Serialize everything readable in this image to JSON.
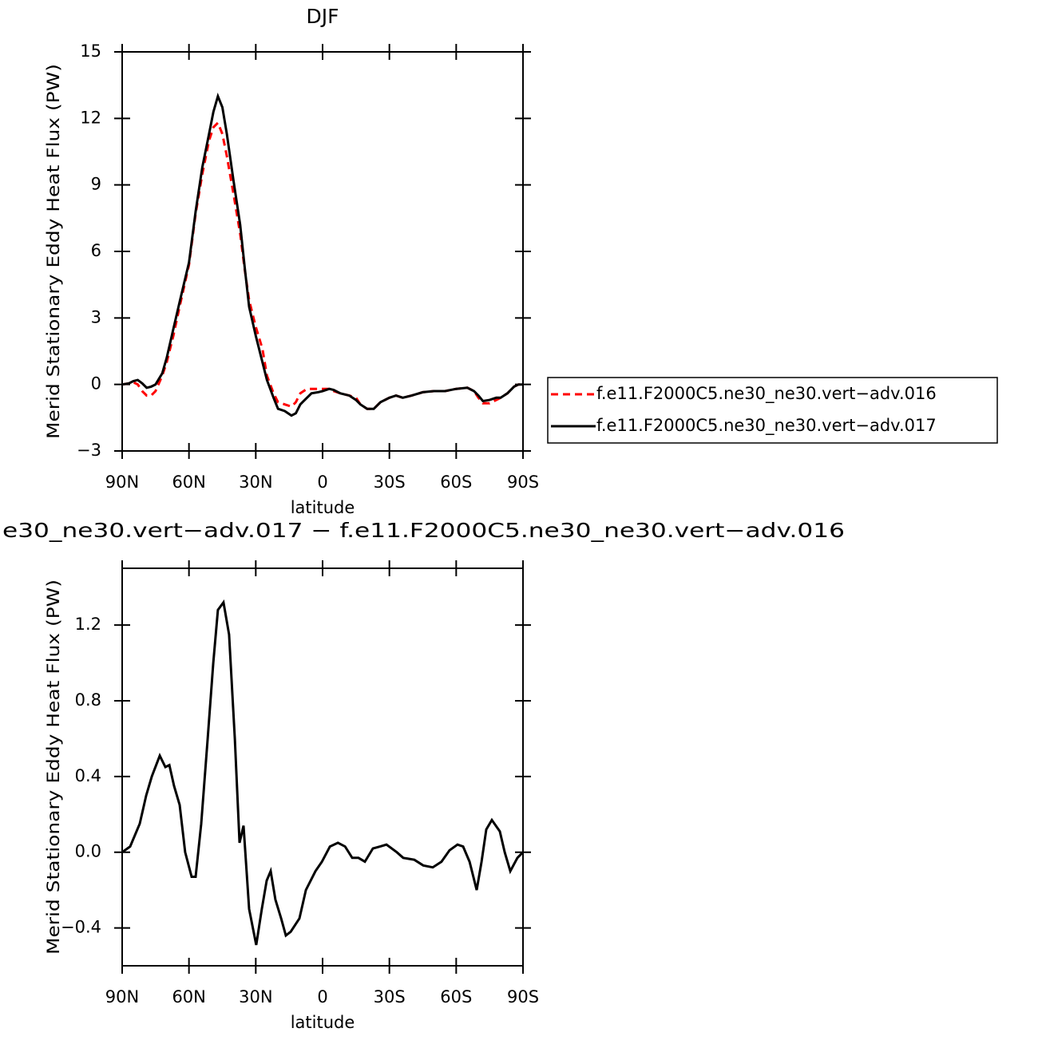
{
  "chart_data": [
    {
      "type": "line",
      "title": "DJF",
      "xlabel": "latitude",
      "ylabel": "Merid Stationary Eddy Heat Flux (PW)",
      "x": [
        90,
        87,
        85,
        83,
        81,
        79,
        77,
        75,
        72,
        70,
        67,
        64,
        60,
        57,
        54,
        51,
        49,
        47,
        45,
        43,
        40,
        37,
        35,
        33,
        30,
        27,
        25,
        22,
        20,
        17,
        14,
        12,
        10,
        7,
        5,
        2,
        0,
        -3,
        -5,
        -8,
        -12,
        -15,
        -17,
        -20,
        -23,
        -26,
        -30,
        -33,
        -36,
        -40,
        -45,
        -50,
        -55,
        -60,
        -65,
        -68,
        -70,
        -72,
        -75,
        -78,
        -80,
        -83,
        -86,
        -88,
        -90
      ],
      "series": [
        {
          "name": "f.e11.F2000C5.ne30_ne30.vert−adv.016",
          "color": "#ff0000",
          "line_style": "dashed",
          "values": [
            0,
            0.05,
            0.1,
            0.0,
            -0.3,
            -0.5,
            -0.5,
            -0.3,
            0.4,
            1.0,
            2.2,
            3.6,
            5.4,
            7.7,
            9.5,
            11.0,
            11.6,
            11.8,
            11.3,
            10.3,
            8.6,
            6.8,
            5.2,
            3.8,
            2.6,
            1.6,
            0.4,
            -0.4,
            -0.8,
            -0.9,
            -1.0,
            -0.8,
            -0.4,
            -0.2,
            -0.2,
            -0.2,
            -0.2,
            -0.2,
            -0.3,
            -0.4,
            -0.5,
            -0.6,
            -0.9,
            -1.1,
            -1.1,
            -0.8,
            -0.6,
            -0.5,
            -0.6,
            -0.5,
            -0.35,
            -0.3,
            -0.3,
            -0.2,
            -0.15,
            -0.3,
            -0.6,
            -0.85,
            -0.85,
            -0.7,
            -0.6,
            -0.4,
            -0.1,
            0,
            0
          ]
        },
        {
          "name": "f.e11.F2000C5.ne30_ne30.vert−adv.017",
          "color": "#000000",
          "line_style": "solid",
          "values": [
            0,
            0.05,
            0.15,
            0.2,
            0.05,
            -0.15,
            -0.1,
            0.0,
            0.5,
            1.2,
            2.5,
            3.8,
            5.5,
            7.8,
            9.8,
            11.3,
            12.3,
            13.0,
            12.5,
            11.3,
            9.2,
            7.2,
            5.3,
            3.5,
            2.2,
            1.0,
            0.2,
            -0.6,
            -1.1,
            -1.2,
            -1.4,
            -1.3,
            -0.9,
            -0.6,
            -0.4,
            -0.35,
            -0.3,
            -0.2,
            -0.25,
            -0.4,
            -0.5,
            -0.7,
            -0.9,
            -1.1,
            -1.1,
            -0.8,
            -0.6,
            -0.5,
            -0.6,
            -0.5,
            -0.35,
            -0.3,
            -0.3,
            -0.2,
            -0.15,
            -0.3,
            -0.5,
            -0.75,
            -0.7,
            -0.6,
            -0.6,
            -0.4,
            -0.1,
            0,
            0
          ]
        }
      ],
      "xlim": [
        90,
        -90
      ],
      "xticks": [
        {
          "value": 90,
          "label": "90N"
        },
        {
          "value": 60,
          "label": "60N"
        },
        {
          "value": 30,
          "label": "30N"
        },
        0,
        {
          "value": -30,
          "label": "30S"
        },
        {
          "value": -60,
          "label": "60S"
        },
        {
          "value": -90,
          "label": "90S"
        }
      ],
      "ylim": [
        -3,
        15
      ],
      "yticks": [
        {
          "value": -3,
          "label": "−3"
        },
        0,
        3,
        6,
        9,
        12,
        15
      ],
      "legend": "outside-right"
    },
    {
      "type": "line",
      "title": "e30_ne30.vert−adv.017 − f.e11.F2000C5.ne30_ne30.vert−adv.016",
      "xlabel": "latitude",
      "ylabel": "Merid Stationary Eddy Heat Flux (PW)",
      "x": [
        90,
        86.4,
        82.1,
        79.2,
        76.7,
        73.1,
        70.6,
        68.8,
        66.7,
        64.2,
        61.7,
        58.8,
        57.0,
        54.5,
        51.6,
        49.1,
        47.0,
        44.5,
        42.0,
        39.4,
        37.3,
        35.5,
        33.0,
        29.8,
        27.3,
        25.1,
        23.3,
        21.2,
        18.6,
        16.5,
        14.3,
        10.4,
        7.5,
        3.2,
        0.3,
        -3.3,
        -6.9,
        -10.1,
        -13.3,
        -16.1,
        -19.0,
        -22.6,
        -25.8,
        -28.7,
        -33.3,
        -36.2,
        -41.2,
        -45.2,
        -49.5,
        -53.4,
        -57.0,
        -60.6,
        -63.1,
        -66.0,
        -69.2,
        -71.4,
        -73.5,
        -76.0,
        -79.6,
        -81.8,
        -84.3,
        -87.5,
        -90
      ],
      "series": [
        {
          "color": "#000000",
          "line_style": "solid",
          "values": [
            0.0,
            0.03,
            0.15,
            0.3,
            0.4,
            0.51,
            0.45,
            0.46,
            0.35,
            0.25,
            0.0,
            -0.13,
            -0.13,
            0.15,
            0.6,
            1.0,
            1.28,
            1.32,
            1.15,
            0.6,
            0.05,
            0.14,
            -0.3,
            -0.49,
            -0.3,
            -0.15,
            -0.1,
            -0.25,
            -0.35,
            -0.44,
            -0.42,
            -0.35,
            -0.2,
            -0.1,
            -0.05,
            0.03,
            0.05,
            0.03,
            -0.03,
            -0.03,
            -0.05,
            0.02,
            0.03,
            0.04,
            0.0,
            -0.03,
            -0.04,
            -0.07,
            -0.08,
            -0.05,
            0.01,
            0.04,
            0.03,
            -0.05,
            -0.2,
            -0.05,
            0.12,
            0.17,
            0.11,
            0.0,
            -0.1,
            -0.03,
            0.0
          ]
        }
      ],
      "xlim": [
        90,
        -90
      ],
      "xticks": [
        {
          "value": 90,
          "label": "90N"
        },
        {
          "value": 60,
          "label": "60N"
        },
        {
          "value": 30,
          "label": "30N"
        },
        0,
        {
          "value": -30,
          "label": "30S"
        },
        {
          "value": -60,
          "label": "60S"
        },
        {
          "value": -90,
          "label": "90S"
        }
      ],
      "ylim": [
        -0.6,
        1.5
      ],
      "yticks": [
        {
          "value": -0.4,
          "label": "−0.4"
        },
        {
          "value": 0,
          "label": "0.0"
        },
        0.4,
        0.8,
        1.2
      ]
    }
  ]
}
